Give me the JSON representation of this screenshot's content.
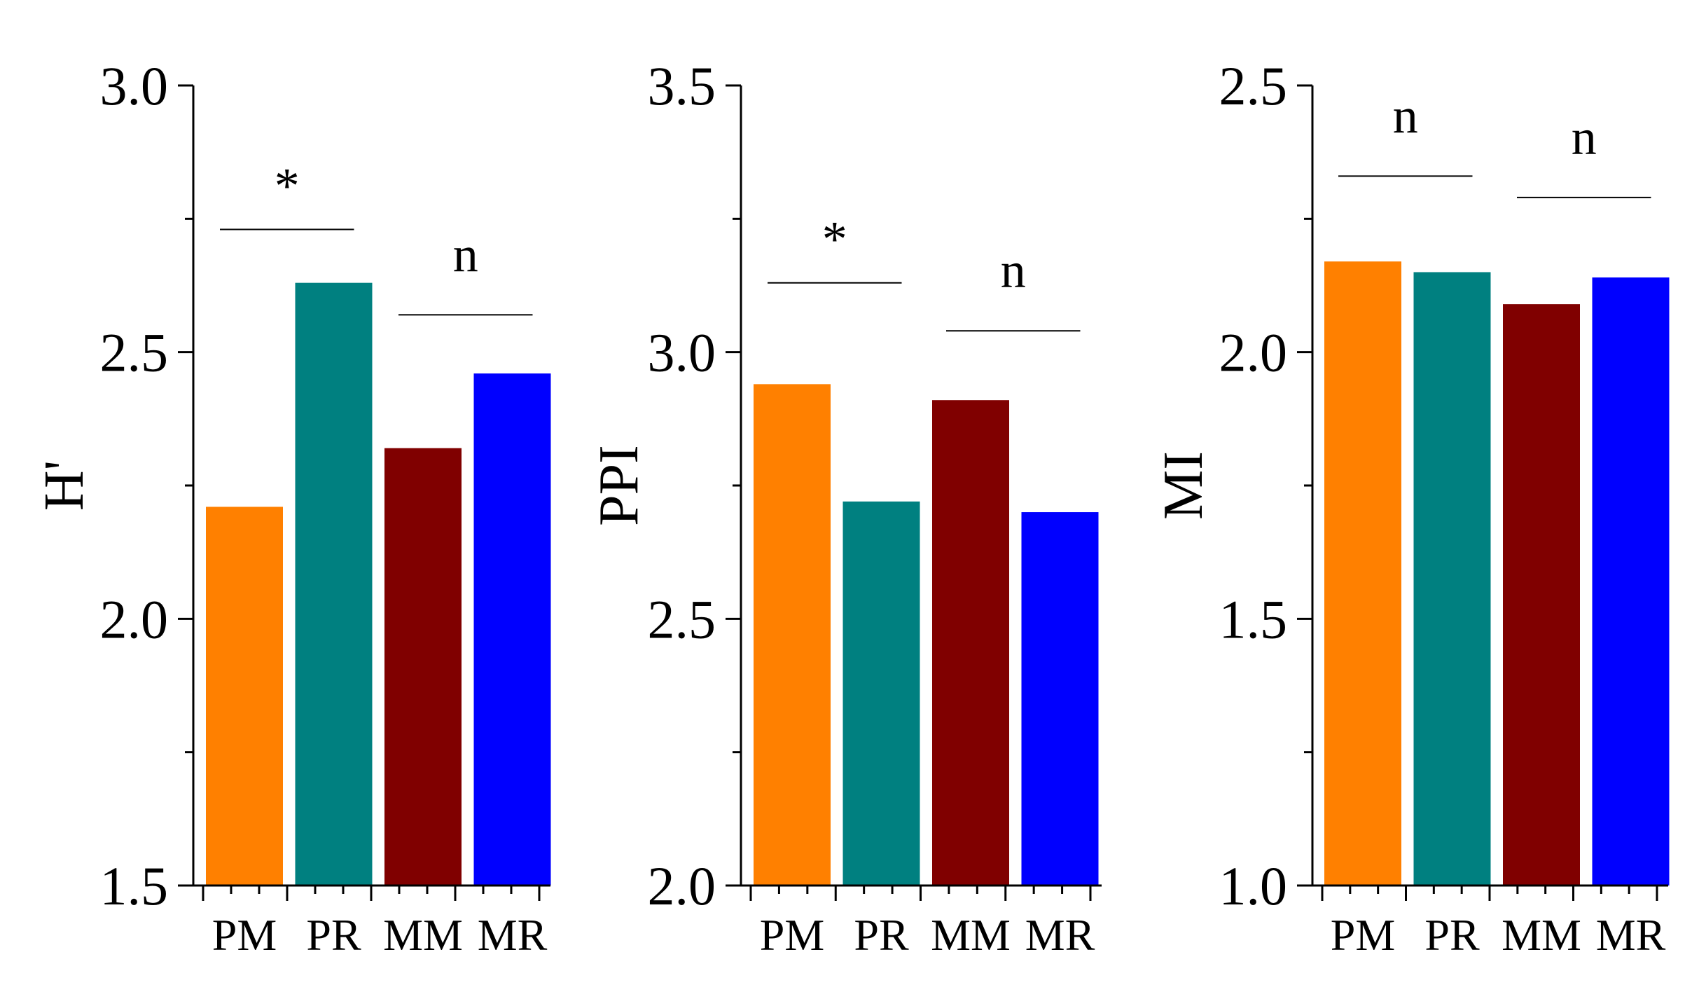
{
  "chart_data": [
    {
      "type": "bar",
      "categories": [
        "PM",
        "PR",
        "MM",
        "MR"
      ],
      "values": [
        2.21,
        2.63,
        2.32,
        2.46
      ],
      "colors": [
        "#FF8000",
        "#008080",
        "#800000",
        "#0000FF"
      ],
      "ylabel": "H'",
      "ylim": [
        1.5,
        3.0
      ],
      "yticks": [
        "1.5",
        "2.0",
        "2.5",
        "3.0"
      ],
      "ytick_values": [
        1.5,
        2.0,
        2.5,
        3.0
      ],
      "annotations": [
        {
          "text": "*",
          "between": [
            "PM",
            "PR"
          ],
          "line_y": 2.73
        },
        {
          "text": "n",
          "between": [
            "MM",
            "MR"
          ],
          "line_y": 2.57
        }
      ]
    },
    {
      "type": "bar",
      "categories": [
        "PM",
        "PR",
        "MM",
        "MR"
      ],
      "values": [
        2.94,
        2.72,
        2.91,
        2.7
      ],
      "colors": [
        "#FF8000",
        "#008080",
        "#800000",
        "#0000FF"
      ],
      "ylabel": "PPI",
      "ylim": [
        2.0,
        3.5
      ],
      "yticks": [
        "2.0",
        "2.5",
        "3.0",
        "3.5"
      ],
      "ytick_values": [
        2.0,
        2.5,
        3.0,
        3.5
      ],
      "annotations": [
        {
          "text": "*",
          "between": [
            "PM",
            "PR"
          ],
          "line_y": 3.13
        },
        {
          "text": "n",
          "between": [
            "MM",
            "MR"
          ],
          "line_y": 3.04
        }
      ]
    },
    {
      "type": "bar",
      "categories": [
        "PM",
        "PR",
        "MM",
        "MR"
      ],
      "values": [
        2.17,
        2.15,
        2.09,
        2.14
      ],
      "colors": [
        "#FF8000",
        "#008080",
        "#800000",
        "#0000FF"
      ],
      "ylabel": "MI",
      "ylim": [
        1.0,
        2.5
      ],
      "yticks": [
        "1.0",
        "1.5",
        "2.0",
        "2.5"
      ],
      "ytick_values": [
        1.0,
        1.5,
        2.0,
        2.5
      ],
      "annotations": [
        {
          "text": "n",
          "between": [
            "PM",
            "PR"
          ],
          "line_y": 2.33
        },
        {
          "text": "n",
          "between": [
            "MM",
            "MR"
          ],
          "line_y": 2.29
        }
      ]
    }
  ]
}
